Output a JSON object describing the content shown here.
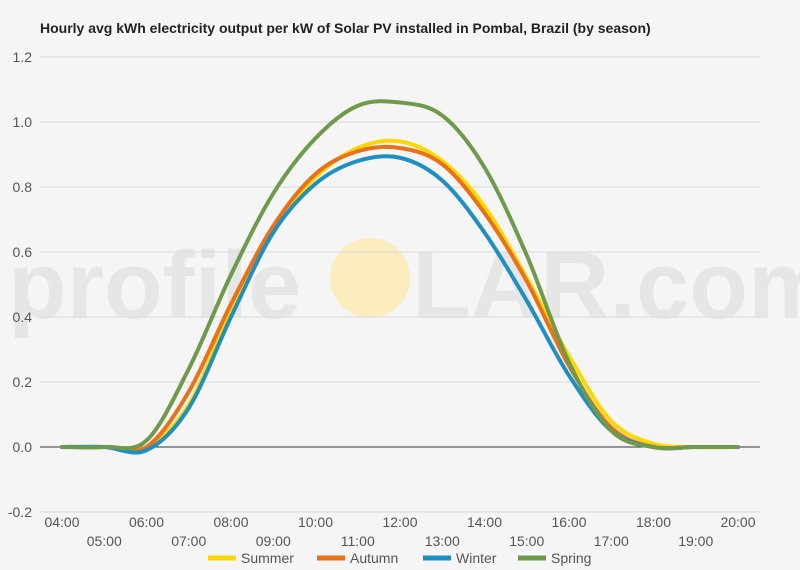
{
  "chart_data": {
    "type": "line",
    "title": "Hourly avg kWh electricity output per kW of Solar PV installed in Pombal, Brazil (by season)",
    "xlabel": "",
    "ylabel": "",
    "ylim": [
      -0.2,
      1.2
    ],
    "yticks": [
      "-0.2",
      "0.0",
      "0.2",
      "0.4",
      "0.6",
      "0.8",
      "1.0",
      "1.2"
    ],
    "x": [
      "04:00",
      "05:00",
      "06:00",
      "07:00",
      "08:00",
      "09:00",
      "10:00",
      "11:00",
      "12:00",
      "13:00",
      "14:00",
      "15:00",
      "16:00",
      "17:00",
      "18:00",
      "19:00",
      "20:00"
    ],
    "grid": true,
    "legend_position": "bottom",
    "series": [
      {
        "name": "Summer",
        "color": "#FFD700",
        "values": [
          0.0,
          0.0,
          0.0,
          0.13,
          0.42,
          0.67,
          0.83,
          0.92,
          0.94,
          0.88,
          0.74,
          0.52,
          0.28,
          0.08,
          0.01,
          0.0,
          0.0
        ]
      },
      {
        "name": "Autumn",
        "color": "#E8711A",
        "values": [
          0.0,
          0.0,
          0.0,
          0.17,
          0.44,
          0.68,
          0.84,
          0.91,
          0.92,
          0.87,
          0.72,
          0.51,
          0.25,
          0.06,
          0.0,
          0.0,
          0.0
        ]
      },
      {
        "name": "Winter",
        "color": "#1F8FC2",
        "values": [
          0.0,
          0.0,
          -0.01,
          0.12,
          0.4,
          0.66,
          0.81,
          0.88,
          0.89,
          0.82,
          0.66,
          0.45,
          0.22,
          0.05,
          0.0,
          0.0,
          0.0
        ]
      },
      {
        "name": "Spring",
        "color": "#6F9A4B",
        "values": [
          0.0,
          0.0,
          0.02,
          0.24,
          0.53,
          0.78,
          0.95,
          1.05,
          1.06,
          1.02,
          0.86,
          0.59,
          0.26,
          0.05,
          0.0,
          0.0,
          0.0
        ]
      }
    ]
  },
  "watermark": {
    "left": "profile",
    "right": "LAR.com",
    "sun_color": "#FFE89A"
  }
}
